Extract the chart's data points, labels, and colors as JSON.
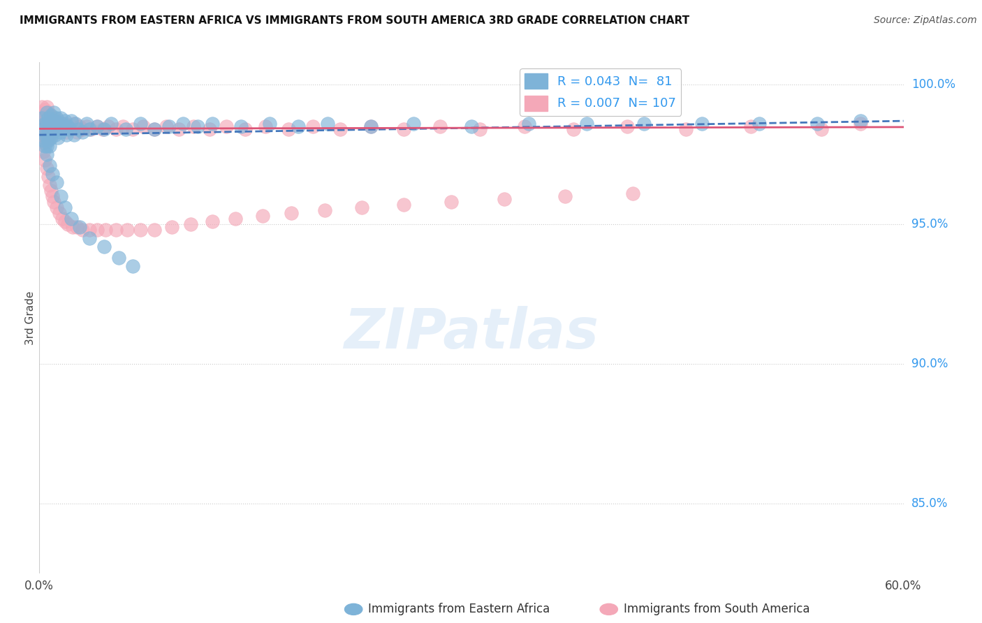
{
  "title": "IMMIGRANTS FROM EASTERN AFRICA VS IMMIGRANTS FROM SOUTH AMERICA 3RD GRADE CORRELATION CHART",
  "source": "Source: ZipAtlas.com",
  "ylabel": "3rd Grade",
  "y_ticks": [
    0.85,
    0.9,
    0.95,
    1.0
  ],
  "y_tick_labels": [
    "85.0%",
    "90.0%",
    "95.0%",
    "100.0%"
  ],
  "xlim": [
    0.0,
    0.6
  ],
  "ylim": [
    0.825,
    1.008
  ],
  "blue_color": "#7EB3D8",
  "pink_color": "#F4A8B8",
  "blue_line_color": "#4477BB",
  "pink_line_color": "#DD5577",
  "watermark": "ZIPatlas",
  "blue_R": "0.043",
  "blue_N": "81",
  "pink_R": "0.007",
  "pink_N": "107",
  "blue_scatter_x": [
    0.002,
    0.003,
    0.003,
    0.004,
    0.004,
    0.004,
    0.005,
    0.005,
    0.005,
    0.005,
    0.006,
    0.006,
    0.006,
    0.007,
    0.007,
    0.007,
    0.008,
    0.008,
    0.008,
    0.009,
    0.009,
    0.01,
    0.01,
    0.011,
    0.011,
    0.012,
    0.012,
    0.013,
    0.013,
    0.014,
    0.015,
    0.015,
    0.016,
    0.017,
    0.018,
    0.019,
    0.02,
    0.021,
    0.022,
    0.024,
    0.025,
    0.027,
    0.03,
    0.033,
    0.035,
    0.04,
    0.045,
    0.05,
    0.06,
    0.07,
    0.08,
    0.09,
    0.1,
    0.11,
    0.12,
    0.14,
    0.16,
    0.18,
    0.2,
    0.23,
    0.26,
    0.3,
    0.34,
    0.38,
    0.42,
    0.46,
    0.5,
    0.54,
    0.57,
    0.005,
    0.007,
    0.009,
    0.012,
    0.015,
    0.018,
    0.022,
    0.028,
    0.035,
    0.045,
    0.055,
    0.065
  ],
  "blue_scatter_y": [
    0.988,
    0.984,
    0.98,
    0.986,
    0.982,
    0.978,
    0.99,
    0.986,
    0.982,
    0.978,
    0.988,
    0.984,
    0.98,
    0.986,
    0.982,
    0.978,
    0.989,
    0.985,
    0.981,
    0.987,
    0.983,
    0.99,
    0.985,
    0.987,
    0.982,
    0.988,
    0.984,
    0.986,
    0.981,
    0.985,
    0.988,
    0.983,
    0.986,
    0.984,
    0.987,
    0.982,
    0.985,
    0.984,
    0.987,
    0.982,
    0.986,
    0.984,
    0.983,
    0.986,
    0.984,
    0.985,
    0.984,
    0.986,
    0.984,
    0.986,
    0.984,
    0.985,
    0.986,
    0.985,
    0.986,
    0.985,
    0.986,
    0.985,
    0.986,
    0.985,
    0.986,
    0.985,
    0.986,
    0.986,
    0.986,
    0.986,
    0.986,
    0.986,
    0.987,
    0.975,
    0.971,
    0.968,
    0.965,
    0.96,
    0.956,
    0.952,
    0.949,
    0.945,
    0.942,
    0.938,
    0.935
  ],
  "pink_scatter_x": [
    0.002,
    0.002,
    0.003,
    0.003,
    0.003,
    0.004,
    0.004,
    0.004,
    0.004,
    0.005,
    0.005,
    0.005,
    0.005,
    0.006,
    0.006,
    0.006,
    0.007,
    0.007,
    0.007,
    0.008,
    0.008,
    0.009,
    0.009,
    0.01,
    0.01,
    0.011,
    0.012,
    0.013,
    0.014,
    0.015,
    0.016,
    0.017,
    0.018,
    0.019,
    0.02,
    0.022,
    0.024,
    0.026,
    0.028,
    0.03,
    0.033,
    0.036,
    0.04,
    0.044,
    0.048,
    0.053,
    0.058,
    0.065,
    0.072,
    0.08,
    0.088,
    0.097,
    0.107,
    0.118,
    0.13,
    0.143,
    0.157,
    0.173,
    0.19,
    0.209,
    0.23,
    0.253,
    0.278,
    0.306,
    0.337,
    0.371,
    0.408,
    0.449,
    0.494,
    0.543,
    0.57,
    0.003,
    0.004,
    0.005,
    0.006,
    0.007,
    0.008,
    0.009,
    0.01,
    0.012,
    0.014,
    0.016,
    0.018,
    0.02,
    0.023,
    0.026,
    0.03,
    0.035,
    0.04,
    0.046,
    0.053,
    0.061,
    0.07,
    0.08,
    0.092,
    0.105,
    0.12,
    0.136,
    0.155,
    0.175,
    0.198,
    0.224,
    0.253,
    0.286,
    0.323,
    0.365,
    0.412
  ],
  "pink_scatter_y": [
    0.992,
    0.988,
    0.99,
    0.986,
    0.982,
    0.991,
    0.987,
    0.983,
    0.979,
    0.992,
    0.988,
    0.984,
    0.98,
    0.99,
    0.986,
    0.982,
    0.989,
    0.985,
    0.981,
    0.988,
    0.984,
    0.987,
    0.983,
    0.988,
    0.984,
    0.986,
    0.985,
    0.987,
    0.984,
    0.986,
    0.985,
    0.984,
    0.986,
    0.983,
    0.985,
    0.984,
    0.986,
    0.983,
    0.985,
    0.984,
    0.985,
    0.984,
    0.985,
    0.984,
    0.985,
    0.984,
    0.985,
    0.984,
    0.985,
    0.984,
    0.985,
    0.984,
    0.985,
    0.984,
    0.985,
    0.984,
    0.985,
    0.984,
    0.985,
    0.984,
    0.985,
    0.984,
    0.985,
    0.984,
    0.985,
    0.984,
    0.985,
    0.984,
    0.985,
    0.984,
    0.986,
    0.976,
    0.973,
    0.97,
    0.967,
    0.964,
    0.962,
    0.96,
    0.958,
    0.956,
    0.954,
    0.952,
    0.951,
    0.95,
    0.949,
    0.949,
    0.948,
    0.948,
    0.948,
    0.948,
    0.948,
    0.948,
    0.948,
    0.948,
    0.949,
    0.95,
    0.951,
    0.952,
    0.953,
    0.954,
    0.955,
    0.956,
    0.957,
    0.958,
    0.959,
    0.96,
    0.961
  ]
}
